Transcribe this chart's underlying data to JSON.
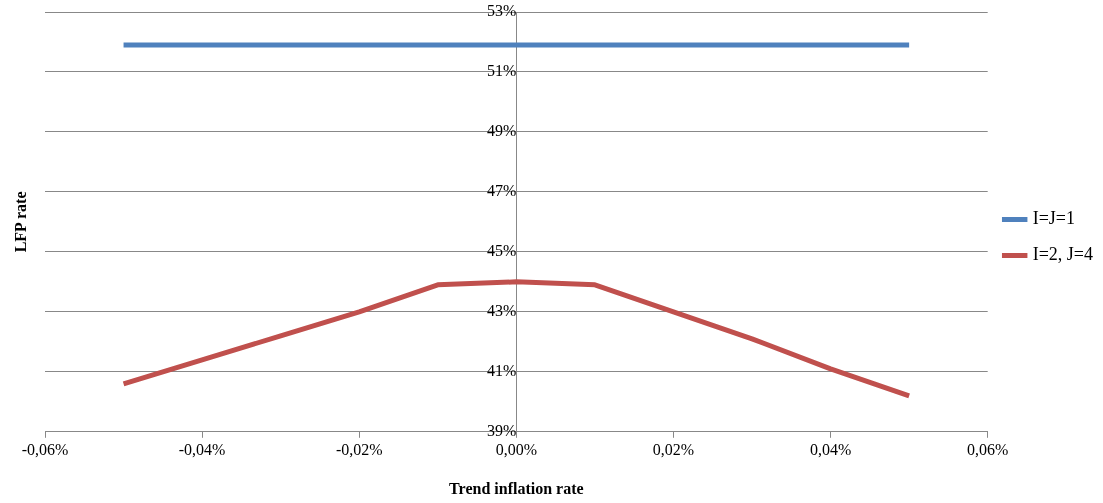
{
  "chart_data": {
    "type": "line",
    "xlabel": "Trend inflation rate",
    "ylabel": "LFP rate",
    "xlim": [
      -0.06,
      0.06
    ],
    "xticks": [
      {
        "value": -0.06,
        "label": "-0,06%"
      },
      {
        "value": -0.04,
        "label": "-0,04%"
      },
      {
        "value": -0.02,
        "label": "-0,02%"
      },
      {
        "value": 0,
        "label": "0,00%"
      },
      {
        "value": 0.02,
        "label": "0,02%"
      },
      {
        "value": 0.04,
        "label": "0,04%"
      },
      {
        "value": 0.06,
        "label": "0,06%"
      }
    ],
    "ylim": [
      39,
      53
    ],
    "yticks": [
      {
        "value": 39,
        "label": "39%"
      },
      {
        "value": 41,
        "label": "41%"
      },
      {
        "value": 43,
        "label": "43%"
      },
      {
        "value": 45,
        "label": "45%"
      },
      {
        "value": 47,
        "label": "47%"
      },
      {
        "value": 49,
        "label": "49%"
      },
      {
        "value": 51,
        "label": "51%"
      },
      {
        "value": 53,
        "label": "53%"
      }
    ],
    "grid": "y",
    "legend": "right",
    "marker": "none",
    "line_style": "solid",
    "series": [
      {
        "name": "I=J=1",
        "color": "#4f81bd",
        "x": [
          -0.05,
          0.05
        ],
        "values": [
          51.9,
          51.9
        ]
      },
      {
        "name": "I=2, J=4",
        "color": "#c0504d",
        "x": [
          -0.05,
          -0.04,
          -0.03,
          -0.02,
          -0.01,
          0,
          0.01,
          0.02,
          0.03,
          0.04,
          0.05
        ],
        "values": [
          40.6,
          41.4,
          42.2,
          43.0,
          43.9,
          44.0,
          43.9,
          43.0,
          42.1,
          41.1,
          40.2
        ]
      }
    ]
  }
}
